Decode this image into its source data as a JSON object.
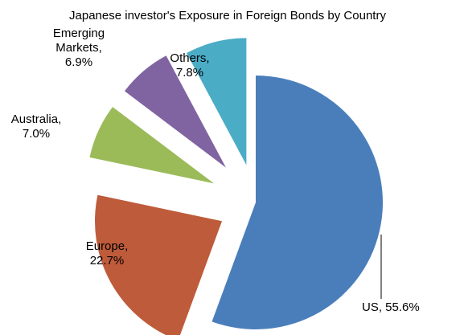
{
  "chart_data": {
    "type": "pie",
    "title": "Japanese investor's Exposure in Foreign Bonds by Country",
    "exploded": true,
    "slices": [
      {
        "name": "US",
        "value": 55.6,
        "label_lines": [
          "US, 55.6%"
        ],
        "color": "#4A7EBB"
      },
      {
        "name": "Europe",
        "value": 22.7,
        "label_lines": [
          "Europe,",
          "22.7%"
        ],
        "color": "#BE5B3A"
      },
      {
        "name": "Australia",
        "value": 7.0,
        "label_lines": [
          "Australia,",
          "7.0%"
        ],
        "color": "#9BBB59"
      },
      {
        "name": "Emerging Markets",
        "value": 6.9,
        "label_lines": [
          "Emerging",
          "Markets,",
          "6.9%"
        ],
        "color": "#8064A2"
      },
      {
        "name": "Others",
        "value": 7.8,
        "label_lines": [
          "Others,",
          "7.8%"
        ],
        "color": "#4BACC6"
      }
    ]
  }
}
